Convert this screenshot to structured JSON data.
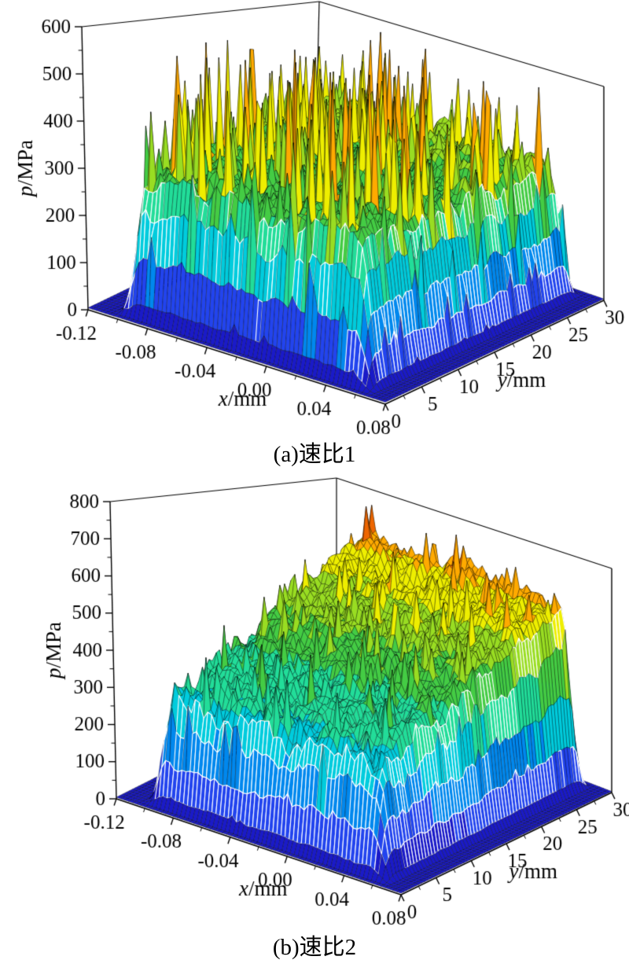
{
  "page": {
    "background": "#ffffff"
  },
  "chart_data": [
    {
      "panel": "a",
      "type": "surface",
      "caption": "(a)速比1",
      "zlabel": "p/MPa",
      "xlabel": "x/mm",
      "ylabel": "y/mm",
      "x_range": [
        -0.12,
        0.08
      ],
      "y_range": [
        0,
        30
      ],
      "z_range": [
        0,
        600
      ],
      "x_ticks": [
        -0.12,
        -0.08,
        -0.04,
        0,
        0.04,
        0.08
      ],
      "x_tick_labels": [
        "-0.12",
        "-0.08",
        "-0.04",
        "0.00",
        "0.04",
        "0.08"
      ],
      "y_ticks": [
        0,
        5,
        10,
        15,
        20,
        25,
        30
      ],
      "y_tick_labels": [
        "0",
        "5",
        "10",
        "15",
        "20",
        "25",
        "30"
      ],
      "z_ticks": [
        0,
        100,
        200,
        300,
        400,
        500,
        600
      ],
      "z_tick_labels": [
        "0",
        "100",
        "200",
        "300",
        "400",
        "500",
        "600"
      ],
      "surface_model": {
        "description": "Contact pressure plateau ~335 MPa over the contact patch with scattered needle peaks up to ~585 MPa, slightly higher toward y=30; pressure ~0 outside the contact patch",
        "floor_pressure": 4,
        "plateau_pressure": 335,
        "back_ramp": 30,
        "noise_amplitude": 30,
        "spike_probability": 0.085,
        "spike_max_extra": 260,
        "peak_pressure": 588,
        "contact_x": [
          -0.105,
          0.052
        ],
        "contact_y": [
          0.5,
          27.8
        ],
        "edge_width_x": 0.016,
        "edge_width_y": 1.8,
        "seed": 7
      },
      "colormap": [
        "#1a1ac8",
        "#2244ee",
        "#0088ee",
        "#00ccdd",
        "#22dd99",
        "#44cc44",
        "#99dd22",
        "#eeee00",
        "#ffaa00",
        "#ee6600"
      ],
      "mesh_color": "#000000",
      "contour_color": "#ffffff"
    },
    {
      "panel": "b",
      "type": "surface",
      "caption": "(b)速比2",
      "zlabel": "p/MPa",
      "xlabel": "x/mm",
      "ylabel": "y/mm",
      "x_range": [
        -0.12,
        0.08
      ],
      "y_range": [
        0,
        30
      ],
      "z_range": [
        0,
        800
      ],
      "x_ticks": [
        -0.12,
        -0.08,
        -0.04,
        0,
        0.04,
        0.08
      ],
      "x_tick_labels": [
        "-0.12",
        "-0.08",
        "-0.04",
        "0.00",
        "0.04",
        "0.08"
      ],
      "y_ticks": [
        0,
        5,
        10,
        15,
        20,
        25,
        30
      ],
      "y_tick_labels": [
        "0",
        "5",
        "10",
        "15",
        "20",
        "25",
        "30"
      ],
      "z_ticks": [
        0,
        100,
        200,
        300,
        400,
        500,
        600,
        700,
        800
      ],
      "z_tick_labels": [
        "0",
        "100",
        "200",
        "300",
        "400",
        "500",
        "600",
        "700",
        "800"
      ],
      "surface_model": {
        "description": "Contact pressure ramps from ~285 MPa at y=0 up to ~700 MPa near y=30 with rough texture and needle peaks up to ~775 MPa clustered at the high-y end; pressure ~0 outside the contact patch",
        "floor_pressure": 4,
        "base_front": 285,
        "base_back": 690,
        "ramp_exponent": 1.35,
        "noise_amplitude": 38,
        "spike_probability": 0.06,
        "spike_max_extra": 120,
        "peak_pressure": 775,
        "contact_x": [
          -0.105,
          0.052
        ],
        "contact_y": [
          0.5,
          27.8
        ],
        "edge_width_x": 0.016,
        "edge_width_y": 1.8,
        "seed": 29
      },
      "colormap": [
        "#1a1ac8",
        "#2244ee",
        "#0088ee",
        "#00ccdd",
        "#22dd99",
        "#44cc44",
        "#99dd22",
        "#eeee00",
        "#ffaa00",
        "#ee6600"
      ],
      "mesh_color": "#000000",
      "contour_color": "#ffffff"
    }
  ]
}
